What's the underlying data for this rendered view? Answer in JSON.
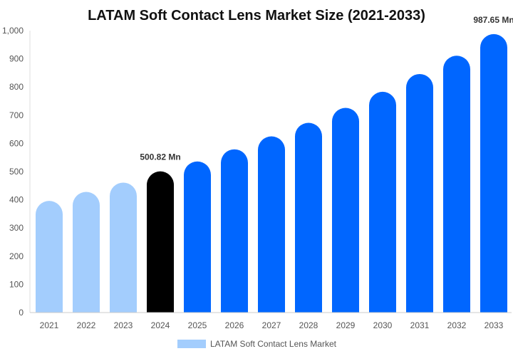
{
  "chart_data": {
    "type": "bar",
    "title": "LATAM Soft Contact Lens Market Size (2021-2033)",
    "categories": [
      "2021",
      "2022",
      "2023",
      "2024",
      "2025",
      "2026",
      "2027",
      "2028",
      "2029",
      "2030",
      "2031",
      "2032",
      "2033"
    ],
    "series": [
      {
        "name": "LATAM Soft Contact Lens Market",
        "values": [
          396,
          428,
          461,
          500.82,
          536,
          579,
          625,
          673,
          726,
          783,
          846,
          911,
          987.65
        ]
      }
    ],
    "bar_colors": [
      "#a3cdfd",
      "#a3cdfd",
      "#a3cdfd",
      "#000000",
      "#0066ff",
      "#0066ff",
      "#0066ff",
      "#0066ff",
      "#0066ff",
      "#0066ff",
      "#0066ff",
      "#0066ff",
      "#0066ff"
    ],
    "data_labels": [
      {
        "index": 3,
        "text": "500.82 Mn"
      },
      {
        "index": 12,
        "text": "987.65 Mn"
      }
    ],
    "ylim": [
      0,
      1000
    ],
    "yticks": [
      "0",
      "100",
      "200",
      "300",
      "400",
      "500",
      "600",
      "700",
      "800",
      "900",
      "1,000"
    ],
    "xlabel": "",
    "ylabel": "",
    "grid": false,
    "legend_position": "bottom",
    "legend_color": "#a3cdfd"
  }
}
